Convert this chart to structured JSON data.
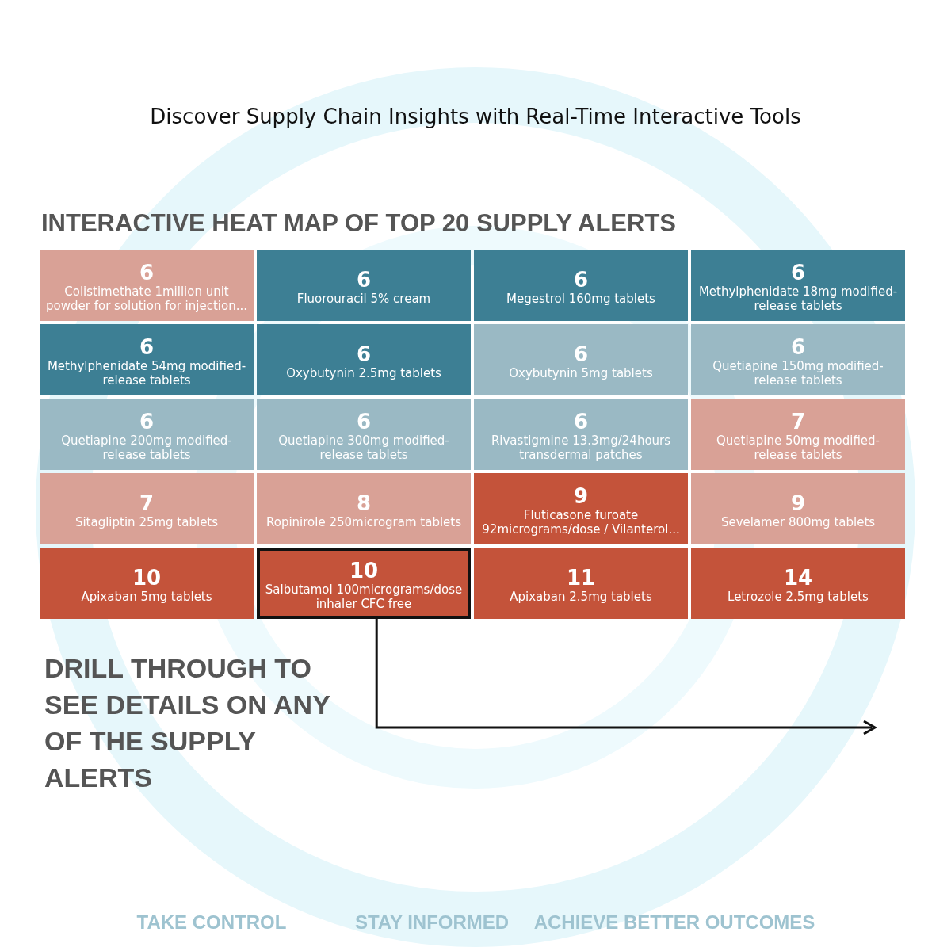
{
  "chart_data": {
    "type": "other",
    "title": "INTERACTIVE HEAT MAP OF TOP 20 SUPPLY ALERTS",
    "subtitle": "Discover Supply Chain Insights with Real-Time Interactive Tools",
    "categories": [
      "Colistimethate 1million unit powder for solution for injection...",
      "Fluorouracil 5% cream",
      "Megestrol 160mg tablets",
      "Methylphenidate 18mg modified-release tablets",
      "Methylphenidate 54mg modified-release tablets",
      "Oxybutynin 2.5mg tablets",
      "Oxybutynin 5mg tablets",
      "Quetiapine 150mg modified-release tablets",
      "Quetiapine 200mg modified-release tablets",
      "Quetiapine 300mg modified-release tablets",
      "Rivastigmine 13.3mg/24hours transdermal patches",
      "Quetiapine 50mg modified-release tablets",
      "Sitagliptin 25mg tablets",
      "Ropinirole 250microgram tablets",
      "Fluticasone furoate 92micrograms/dose / Vilanterol...",
      "Sevelamer 800mg tablets",
      "Apixaban 5mg tablets",
      "Salbutamol 100micrograms/dose inhaler CFC free",
      "Apixaban 2.5mg tablets",
      "Letrozole 2.5mg tablets"
    ],
    "values": [
      6,
      6,
      6,
      6,
      6,
      6,
      6,
      6,
      6,
      6,
      6,
      7,
      7,
      8,
      9,
      9,
      10,
      10,
      11,
      14
    ],
    "colors": [
      "#d9a196",
      "#3d7f94",
      "#3d7f94",
      "#3d7f94",
      "#3d7f94",
      "#3d7f94",
      "#9ab9c4",
      "#9ab9c4",
      "#9ab9c4",
      "#9ab9c4",
      "#9ab9c4",
      "#d9a196",
      "#d9a196",
      "#d9a196",
      "#c4533a",
      "#d9a196",
      "#c4533a",
      "#c4533a",
      "#c4533a",
      "#c4533a"
    ],
    "data_labels": true,
    "annotations": [
      "DRILL THROUGH TO SEE DETAILS ON ANY OF THE SUPPLY ALERTS",
      "TAKE CONTROL",
      "STAY INFORMED",
      "ACHIEVE BETTER OUTCOMES"
    ]
  }
}
